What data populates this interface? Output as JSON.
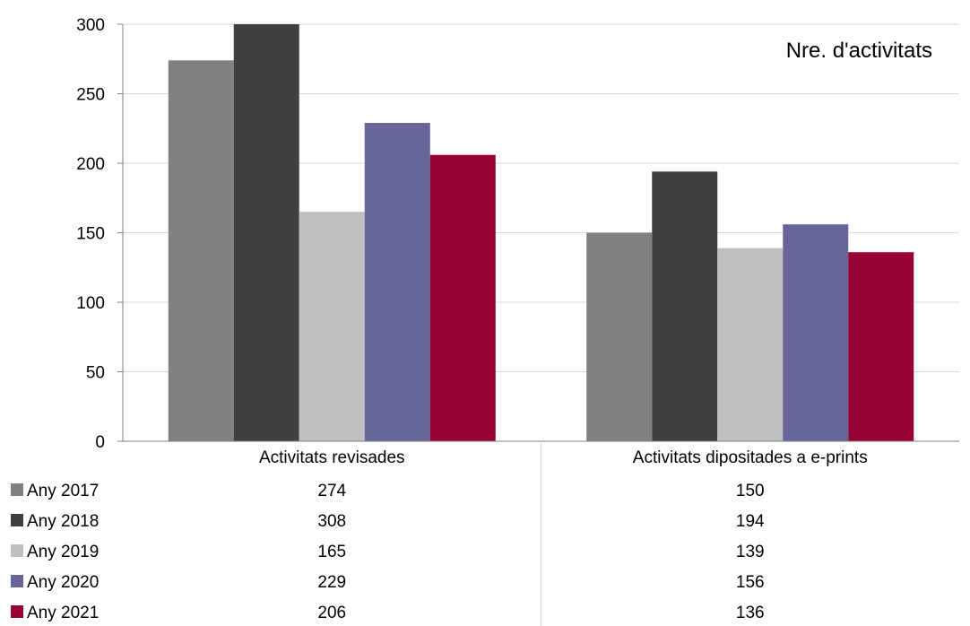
{
  "chart_data": {
    "type": "bar",
    "title": "Nre. d'activitats",
    "categories": [
      "Activitats revisades",
      "Activitats dipositades a e-prints"
    ],
    "series": [
      {
        "name": "Any 2017",
        "values": [
          274,
          150
        ],
        "color": "#808080"
      },
      {
        "name": "Any 2018",
        "values": [
          308,
          194
        ],
        "color": "#404040"
      },
      {
        "name": "Any 2019",
        "values": [
          165,
          139
        ],
        "color": "#bfbfbf"
      },
      {
        "name": "Any 2020",
        "values": [
          229,
          156
        ],
        "color": "#666699"
      },
      {
        "name": "Any 2021",
        "values": [
          206,
          136
        ],
        "color": "#990033"
      }
    ],
    "ylim": [
      0,
      300
    ],
    "yticks": [
      0,
      50,
      100,
      150,
      200,
      250,
      300
    ],
    "grid": true,
    "legend": "data-table-below",
    "gridline_color": "#d9d9d9"
  }
}
